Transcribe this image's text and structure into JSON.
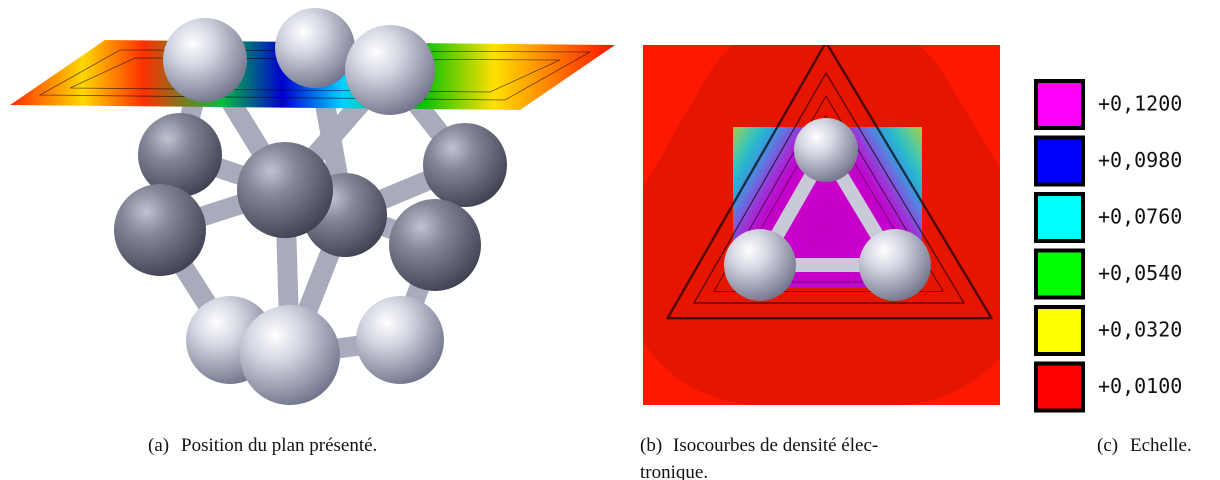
{
  "figures": [
    {
      "label": "(a)",
      "caption_lines": [
        "Position du plan présenté."
      ]
    },
    {
      "label": "(b)",
      "caption_lines": [
        "Isocourbes de densité élec-",
        "tronique."
      ]
    },
    {
      "label": "(c)",
      "caption_lines": [
        "Echelle."
      ]
    }
  ],
  "scale": [
    {
      "label": "+0,1200",
      "color": "#ff00ff"
    },
    {
      "label": "+0,0980",
      "color": "#0000ff"
    },
    {
      "label": "+0,0760",
      "color": "#00ffff"
    },
    {
      "label": "+0,0540",
      "color": "#00ff00"
    },
    {
      "label": "+0,0320",
      "color": "#ffff00"
    },
    {
      "label": "+0,0100",
      "color": "#ff0000"
    }
  ]
}
